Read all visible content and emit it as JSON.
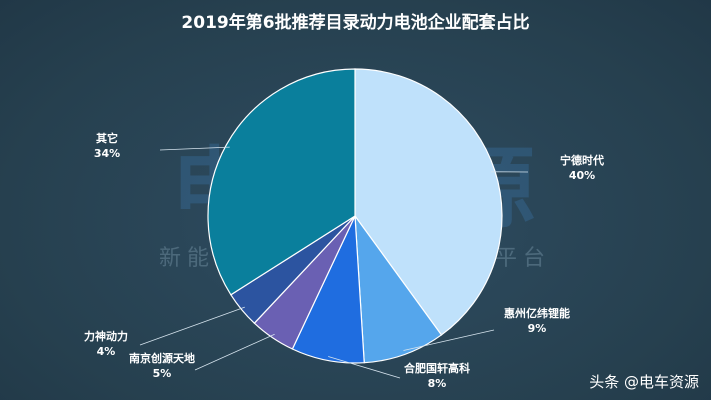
{
  "chart_data": {
    "type": "pie",
    "title": "2019年第6批推荐目录动力电池企业配套占比",
    "slices": [
      {
        "label": "宁德时代",
        "value": 40,
        "value_text": "40%",
        "color": "#bfe1fb"
      },
      {
        "label": "惠州亿纬锂能",
        "value": 9,
        "value_text": "9%",
        "color": "#55a6ec"
      },
      {
        "label": "合肥国轩高科",
        "value": 8,
        "value_text": "8%",
        "color": "#1f6de0"
      },
      {
        "label": "南京创源天地",
        "value": 5,
        "value_text": "5%",
        "color": "#6a60b3"
      },
      {
        "label": "力神动力",
        "value": 4,
        "value_text": "4%",
        "color": "#2c54a0"
      },
      {
        "label": "其它",
        "value": 34,
        "value_text": "34%",
        "color": "#0a7f9c"
      }
    ]
  },
  "watermark": {
    "main": "电车资源",
    "sub": "新能源汽车一站式信息服务平台"
  },
  "corner_credit": "头条 @电车资源"
}
